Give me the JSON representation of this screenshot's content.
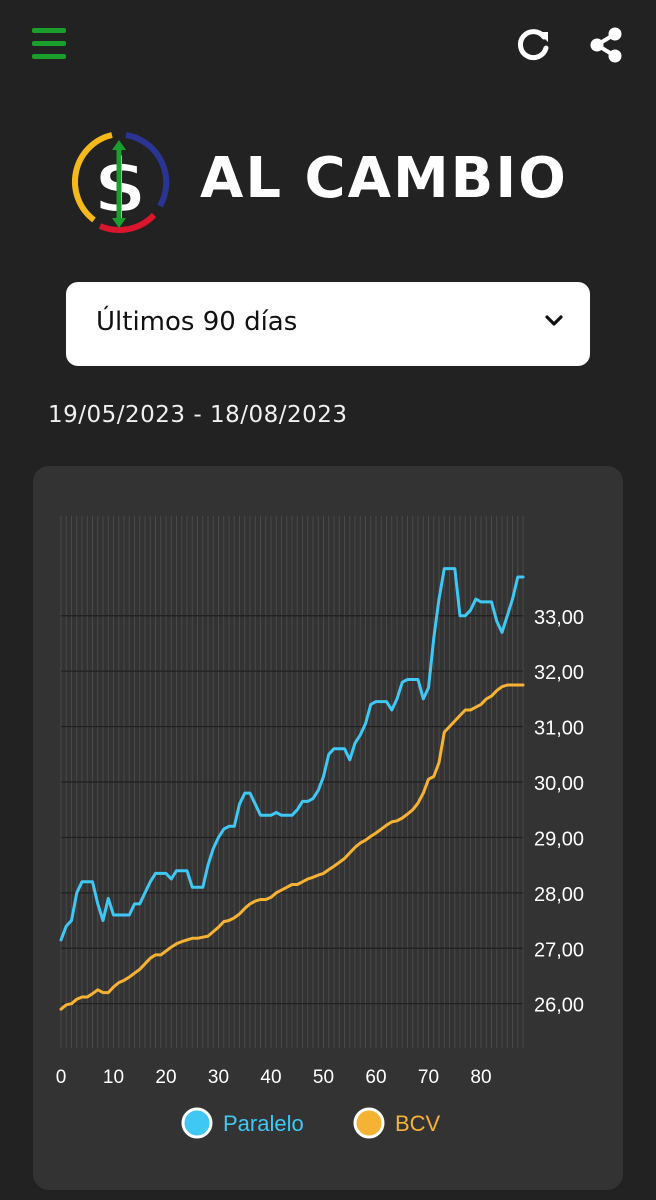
{
  "header": {
    "menu_icon": "hamburger-menu-icon",
    "refresh_icon": "refresh-icon",
    "share_icon": "share-icon",
    "accent_color": "#1a9e2c"
  },
  "logo": {
    "text": "AL CAMBIO",
    "symbol": "$",
    "ring_colors": [
      "#f6b91c",
      "#2a3593",
      "#d9162b"
    ]
  },
  "range_select": {
    "selected": "Últimos 90 días",
    "icon": "chevron-down-icon"
  },
  "date_range": "19/05/2023 - 18/08/2023",
  "chart_data": {
    "type": "line",
    "x": [
      0,
      1,
      2,
      3,
      4,
      5,
      6,
      7,
      8,
      9,
      10,
      11,
      12,
      13,
      14,
      15,
      16,
      17,
      18,
      19,
      20,
      21,
      22,
      23,
      24,
      25,
      26,
      27,
      28,
      29,
      30,
      31,
      32,
      33,
      34,
      35,
      36,
      37,
      38,
      39,
      40,
      41,
      42,
      43,
      44,
      45,
      46,
      47,
      48,
      49,
      50,
      51,
      52,
      53,
      54,
      55,
      56,
      57,
      58,
      59,
      60,
      61,
      62,
      63,
      64,
      65,
      66,
      67,
      68,
      69,
      70,
      71,
      72,
      73,
      74,
      75,
      76,
      77,
      78,
      79,
      80,
      81,
      82,
      83,
      84,
      85,
      86,
      87,
      88
    ],
    "series": [
      {
        "name": "Paralelo",
        "color": "#3fc8f4",
        "values": [
          27.15,
          27.4,
          27.5,
          28.0,
          28.2,
          28.2,
          28.2,
          27.8,
          27.5,
          27.9,
          27.6,
          27.6,
          27.6,
          27.6,
          27.8,
          27.8,
          28.0,
          28.2,
          28.35,
          28.35,
          28.35,
          28.25,
          28.4,
          28.4,
          28.4,
          28.1,
          28.1,
          28.1,
          28.5,
          28.8,
          29.0,
          29.15,
          29.2,
          29.2,
          29.6,
          29.8,
          29.8,
          29.6,
          29.4,
          29.4,
          29.4,
          29.45,
          29.4,
          29.4,
          29.4,
          29.5,
          29.65,
          29.65,
          29.7,
          29.85,
          30.1,
          30.5,
          30.6,
          30.6,
          30.6,
          30.4,
          30.7,
          30.85,
          31.05,
          31.4,
          31.45,
          31.45,
          31.45,
          31.3,
          31.5,
          31.8,
          31.85,
          31.85,
          31.85,
          31.5,
          31.7,
          32.6,
          33.3,
          33.85,
          33.85,
          33.85,
          33.0,
          33.0,
          33.1,
          33.3,
          33.25,
          33.25,
          33.25,
          32.9,
          32.7,
          33.0,
          33.3,
          33.7,
          33.7
        ]
      },
      {
        "name": "BCV",
        "color": "#f6b233",
        "values": [
          25.9,
          25.98,
          26.0,
          26.08,
          26.12,
          26.12,
          26.18,
          26.25,
          26.2,
          26.2,
          26.3,
          26.38,
          26.42,
          26.48,
          26.55,
          26.62,
          26.72,
          26.82,
          26.88,
          26.88,
          26.95,
          27.02,
          27.08,
          27.12,
          27.15,
          27.18,
          27.18,
          27.2,
          27.22,
          27.3,
          27.38,
          27.48,
          27.5,
          27.55,
          27.62,
          27.72,
          27.8,
          27.85,
          27.88,
          27.88,
          27.92,
          28.0,
          28.05,
          28.1,
          28.15,
          28.15,
          28.2,
          28.25,
          28.28,
          28.32,
          28.35,
          28.42,
          28.48,
          28.55,
          28.62,
          28.72,
          28.82,
          28.9,
          28.95,
          29.02,
          29.08,
          29.15,
          29.22,
          29.28,
          29.3,
          29.35,
          29.42,
          29.5,
          29.62,
          29.8,
          30.05,
          30.1,
          30.35,
          30.9,
          31.0,
          31.1,
          31.2,
          31.3,
          31.3,
          31.35,
          31.4,
          31.5,
          31.55,
          31.65,
          31.72,
          31.75,
          31.75,
          31.75,
          31.75
        ]
      }
    ],
    "xticks": [
      "0",
      "10",
      "20",
      "30",
      "40",
      "50",
      "60",
      "70",
      "80"
    ],
    "yticks": [
      "26,00",
      "27,00",
      "28,00",
      "29,00",
      "30,00",
      "31,00",
      "32,00",
      "33,00"
    ],
    "xlim": [
      0,
      88
    ],
    "ylim": [
      25.2,
      34.8
    ],
    "grid": true,
    "legend": "bottom-center"
  }
}
